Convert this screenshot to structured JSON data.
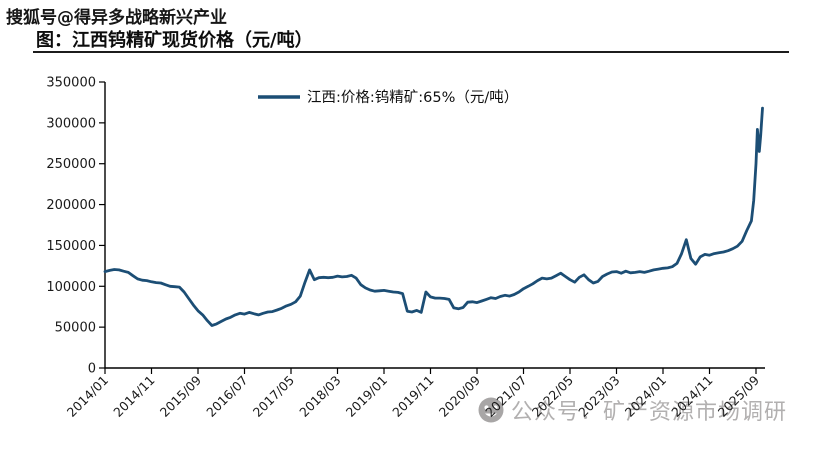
{
  "watermark_top": "搜狐号@得异多战略新兴产业",
  "title": "图：江西钨精矿现货价格（元/吨）",
  "watermark_bottom": {
    "label": "公众号：矿产资源市场调研",
    "icon": "face-emoji-icon"
  },
  "colors": {
    "line": "#1c4e75",
    "axis": "#000000",
    "text": "#1a1a1a",
    "watermark_gray": "#b2b0b0"
  },
  "chart_data": {
    "type": "line",
    "title": "图：江西钨精矿现货价格（元/吨）",
    "legend": "江西:价格:钨精矿:65%（元/吨）",
    "legend_position": "top-center",
    "grid": false,
    "xlabel": "",
    "ylabel": "",
    "ylim": [
      0,
      350000
    ],
    "yticks": [
      0,
      50000,
      100000,
      150000,
      200000,
      250000,
      300000,
      350000
    ],
    "x_unit": "months since 2014/01",
    "xtick_interval_months": 10,
    "xticklabels": [
      "2014/01",
      "2014/11",
      "2015/09",
      "2016/07",
      "2017/05",
      "2018/03",
      "2019/01",
      "2019/11",
      "2020/09",
      "2021/07",
      "2022/05",
      "2023/03",
      "2024/01",
      "2024/11",
      "2025/09"
    ],
    "series": [
      {
        "name": "江西:价格:钨精矿:65%（元/吨）",
        "points": [
          [
            0,
            118000
          ],
          [
            1,
            119500
          ],
          [
            2,
            120500
          ],
          [
            3,
            120000
          ],
          [
            4,
            118500
          ],
          [
            5,
            117000
          ],
          [
            6,
            113000
          ],
          [
            7,
            109000
          ],
          [
            8,
            107500
          ],
          [
            9,
            107000
          ],
          [
            10,
            105500
          ],
          [
            11,
            104500
          ],
          [
            12,
            104000
          ],
          [
            13,
            102000
          ],
          [
            14,
            100000
          ],
          [
            15,
            99500
          ],
          [
            16,
            99000
          ],
          [
            17,
            93000
          ],
          [
            18,
            85000
          ],
          [
            19,
            77000
          ],
          [
            20,
            70000
          ],
          [
            21,
            65000
          ],
          [
            22,
            58000
          ],
          [
            23,
            52000
          ],
          [
            24,
            54000
          ],
          [
            25,
            57000
          ],
          [
            26,
            60000
          ],
          [
            27,
            62000
          ],
          [
            28,
            65000
          ],
          [
            29,
            67000
          ],
          [
            30,
            66000
          ],
          [
            31,
            68000
          ],
          [
            32,
            66500
          ],
          [
            33,
            65000
          ],
          [
            34,
            67000
          ],
          [
            35,
            68500
          ],
          [
            36,
            69000
          ],
          [
            37,
            71000
          ],
          [
            38,
            73000
          ],
          [
            39,
            76000
          ],
          [
            40,
            78000
          ],
          [
            41,
            81000
          ],
          [
            42,
            88000
          ],
          [
            43,
            105000
          ],
          [
            44,
            120000
          ],
          [
            45,
            108000
          ],
          [
            46,
            110500
          ],
          [
            47,
            111000
          ],
          [
            48,
            110500
          ],
          [
            49,
            111000
          ],
          [
            50,
            112500
          ],
          [
            51,
            111500
          ],
          [
            52,
            112000
          ],
          [
            53,
            113500
          ],
          [
            54,
            110000
          ],
          [
            55,
            102000
          ],
          [
            56,
            98000
          ],
          [
            57,
            95500
          ],
          [
            58,
            94000
          ],
          [
            59,
            94500
          ],
          [
            60,
            95000
          ],
          [
            61,
            94000
          ],
          [
            62,
            93000
          ],
          [
            63,
            92500
          ],
          [
            64,
            91000
          ],
          [
            65,
            69500
          ],
          [
            66,
            68500
          ],
          [
            67,
            70500
          ],
          [
            68,
            68000
          ],
          [
            69,
            93000
          ],
          [
            70,
            87000
          ],
          [
            71,
            85500
          ],
          [
            72,
            85500
          ],
          [
            73,
            85000
          ],
          [
            74,
            84000
          ],
          [
            75,
            73500
          ],
          [
            76,
            72500
          ],
          [
            77,
            74000
          ],
          [
            78,
            80500
          ],
          [
            79,
            81000
          ],
          [
            80,
            80000
          ],
          [
            81,
            82000
          ],
          [
            82,
            84000
          ],
          [
            83,
            86000
          ],
          [
            84,
            85000
          ],
          [
            85,
            87500
          ],
          [
            86,
            89000
          ],
          [
            87,
            88000
          ],
          [
            88,
            90000
          ],
          [
            89,
            93000
          ],
          [
            90,
            97000
          ],
          [
            91,
            100000
          ],
          [
            92,
            103000
          ],
          [
            93,
            107000
          ],
          [
            94,
            110000
          ],
          [
            95,
            109000
          ],
          [
            96,
            110000
          ],
          [
            97,
            113000
          ],
          [
            98,
            116000
          ],
          [
            99,
            112000
          ],
          [
            100,
            108000
          ],
          [
            101,
            105000
          ],
          [
            102,
            111000
          ],
          [
            103,
            114000
          ],
          [
            104,
            108000
          ],
          [
            105,
            104000
          ],
          [
            106,
            106000
          ],
          [
            107,
            112000
          ],
          [
            108,
            115000
          ],
          [
            109,
            117500
          ],
          [
            110,
            118000
          ],
          [
            111,
            116000
          ],
          [
            112,
            118500
          ],
          [
            113,
            116500
          ],
          [
            114,
            117000
          ],
          [
            115,
            118000
          ],
          [
            116,
            117000
          ],
          [
            117,
            118500
          ],
          [
            118,
            120000
          ],
          [
            119,
            121000
          ],
          [
            120,
            122000
          ],
          [
            121,
            122500
          ],
          [
            122,
            124000
          ],
          [
            123,
            128000
          ],
          [
            124,
            140000
          ],
          [
            125,
            157000
          ],
          [
            126,
            134000
          ],
          [
            127,
            127000
          ],
          [
            128,
            136000
          ],
          [
            129,
            139000
          ],
          [
            130,
            138000
          ],
          [
            131,
            140000
          ],
          [
            132,
            141000
          ],
          [
            133,
            142000
          ],
          [
            134,
            143500
          ],
          [
            135,
            146000
          ],
          [
            136,
            149000
          ],
          [
            137,
            155000
          ],
          [
            138,
            168000
          ],
          [
            139,
            180000
          ],
          [
            139.5,
            205000
          ],
          [
            140,
            250000
          ],
          [
            140.3,
            292000
          ],
          [
            140.7,
            265000
          ],
          [
            141,
            285000
          ],
          [
            141.4,
            318000
          ]
        ]
      }
    ]
  }
}
